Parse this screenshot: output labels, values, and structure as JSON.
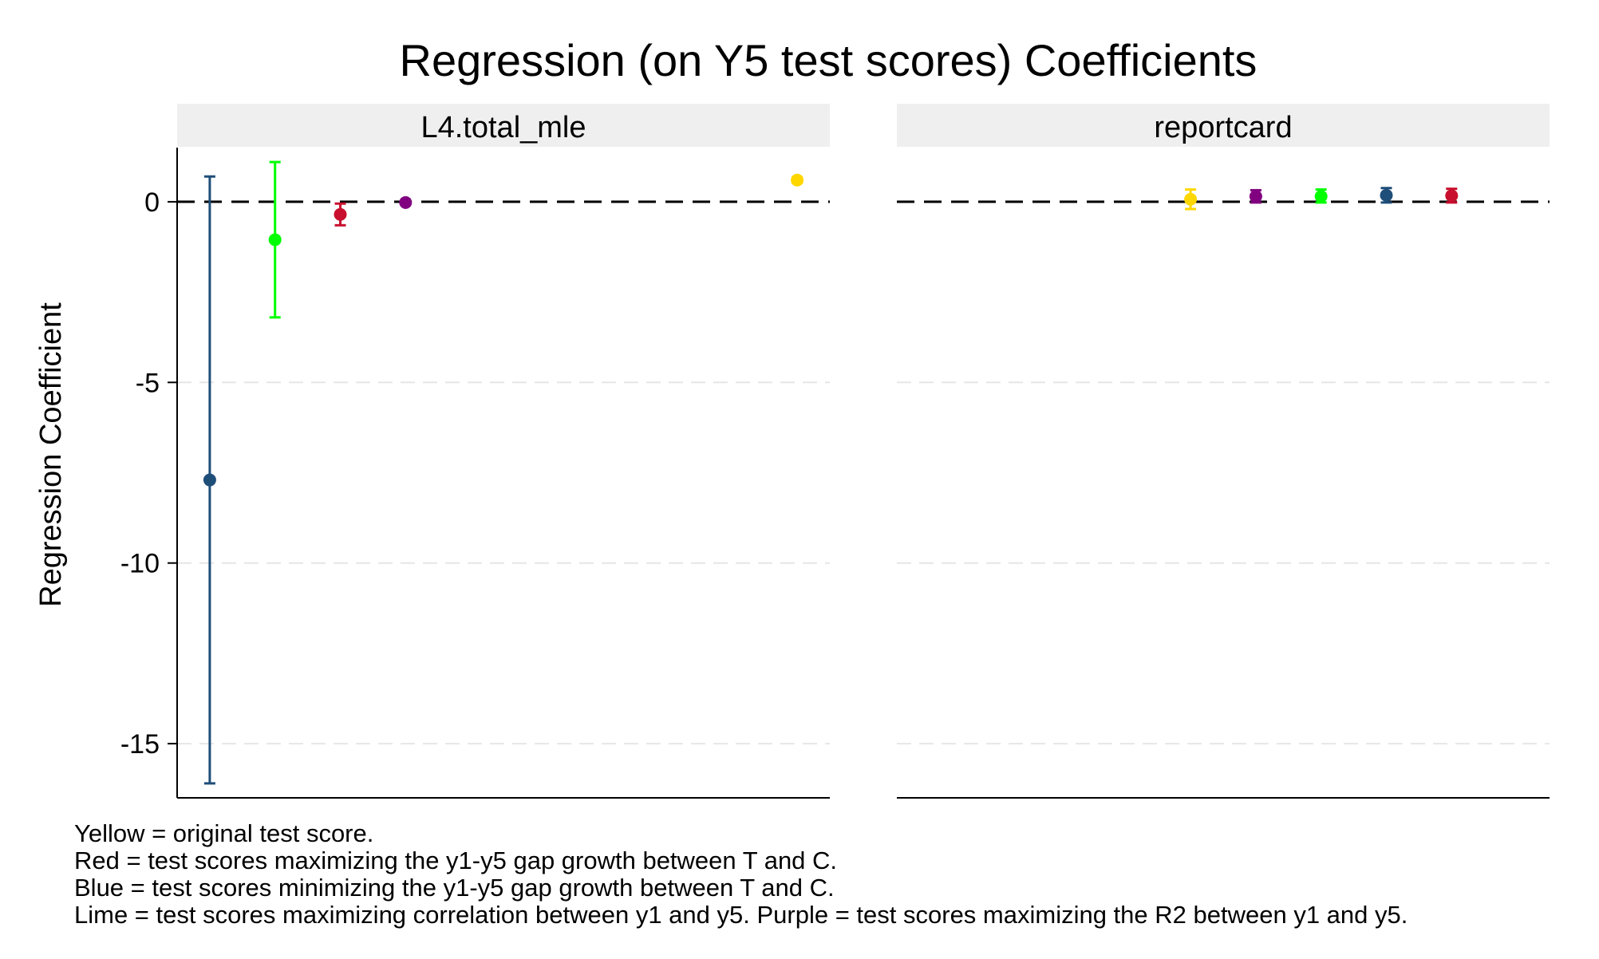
{
  "chart_data": {
    "type": "scatter",
    "title": "Regression (on Y5 test scores) Coefficients",
    "ylabel": "Regression Coefficient",
    "ylim": [
      -16.5,
      1.5
    ],
    "yticks": [
      0,
      -5,
      -10,
      -15
    ],
    "ytick_labels": [
      "0",
      "-5",
      "-10",
      "-15"
    ],
    "reference_line": 0,
    "grid": true,
    "colors": {
      "yellow": "#ffd700",
      "red": "#c8102e",
      "blue": "#1f4e79",
      "lime": "#00ff00",
      "purple": "#800080"
    },
    "panels": [
      {
        "label": "L4.total_mle",
        "points": [
          {
            "color": "blue",
            "x": 1,
            "estimate": -7.7,
            "ci": [
              -16.1,
              0.7
            ]
          },
          {
            "color": "lime",
            "x": 2,
            "estimate": -1.05,
            "ci": [
              -3.2,
              1.1
            ]
          },
          {
            "color": "red",
            "x": 3,
            "estimate": -0.35,
            "ci": [
              -0.65,
              -0.05
            ]
          },
          {
            "color": "purple",
            "x": 4,
            "estimate": -0.02,
            "ci": [
              -0.06,
              0.02
            ]
          },
          {
            "color": "yellow",
            "x": 10,
            "estimate": 0.6,
            "ci": [
              0.52,
              0.68
            ]
          }
        ]
      },
      {
        "label": "reportcard",
        "points": [
          {
            "color": "yellow",
            "x": 5,
            "estimate": 0.07,
            "ci": [
              -0.2,
              0.34
            ]
          },
          {
            "color": "purple",
            "x": 6,
            "estimate": 0.15,
            "ci": [
              -0.02,
              0.32
            ]
          },
          {
            "color": "lime",
            "x": 7,
            "estimate": 0.15,
            "ci": [
              -0.02,
              0.34
            ]
          },
          {
            "color": "blue",
            "x": 8,
            "estimate": 0.18,
            "ci": [
              -0.02,
              0.38
            ]
          },
          {
            "color": "red",
            "x": 9,
            "estimate": 0.17,
            "ci": [
              -0.02,
              0.36
            ]
          }
        ]
      }
    ],
    "notes": [
      "Yellow = original test score.",
      "Red = test scores maximizing the y1-y5 gap growth between T and C.",
      "Blue = test scores minimizing the y1-y5 gap growth between T and C.",
      "Lime = test scores maximizing correlation between y1 and y5. Purple = test scores maximizing the R2 between y1 and y5."
    ]
  }
}
